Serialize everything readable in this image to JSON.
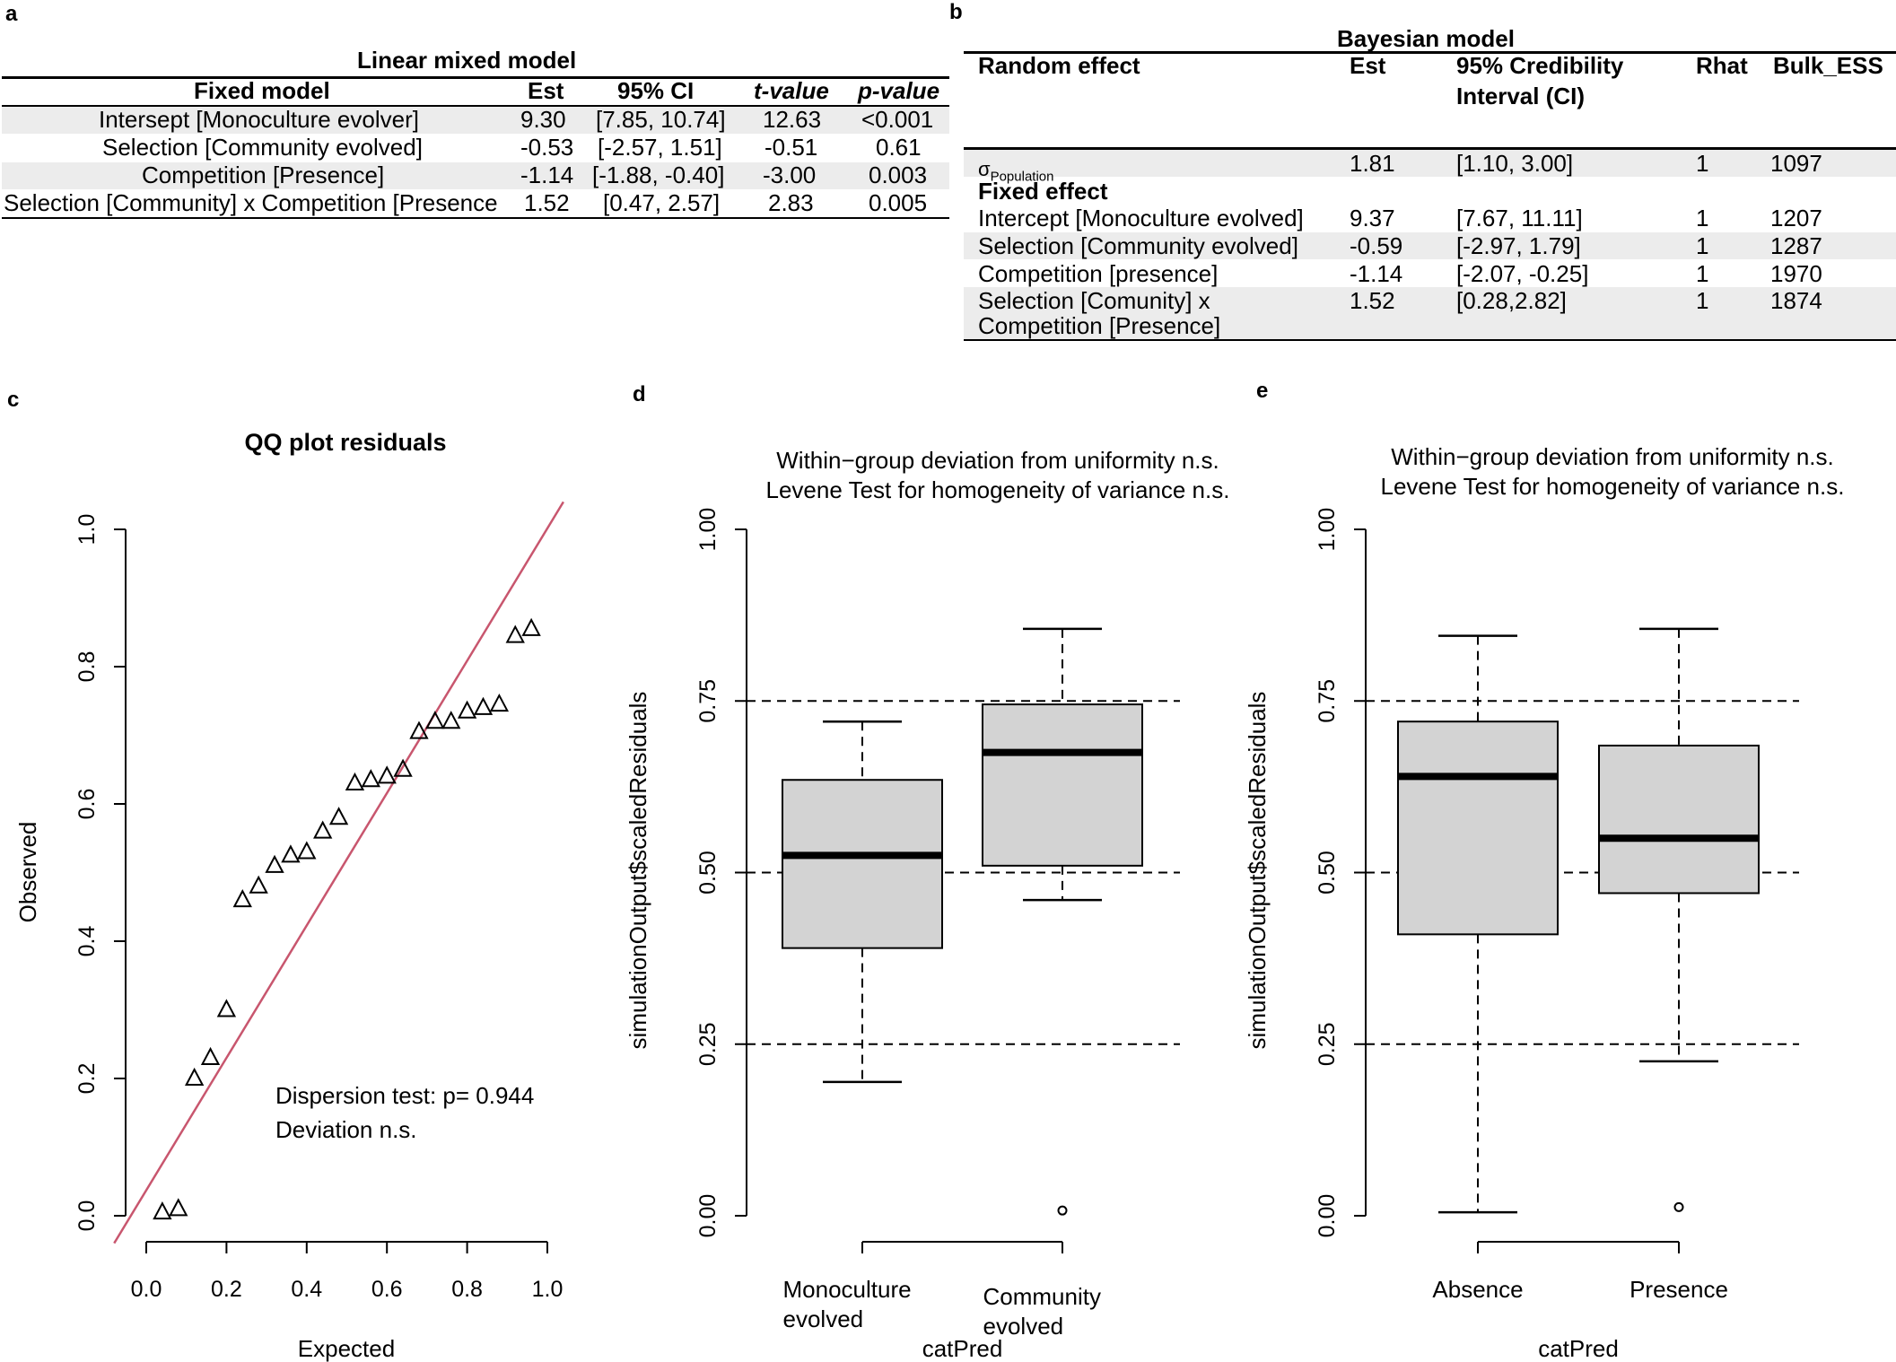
{
  "panels": {
    "a": "a",
    "b": "b",
    "c": "c",
    "d": "d",
    "e": "e"
  },
  "table_a": {
    "title": "Linear mixed model",
    "headers": [
      "Fixed model",
      "Est",
      "95% CI",
      "t-value",
      "p-value"
    ],
    "rows": [
      [
        "Intersept [Monoculture evolver]",
        "9.30",
        "[7.85, 10.74]",
        "12.63",
        "<0.001"
      ],
      [
        "Selection [Community evolved]",
        "-0.53",
        "[-2.57, 1.51]",
        "-0.51",
        "0.61"
      ],
      [
        "Competition [Presence]",
        "-1.14",
        "[-1.88, -0.40]",
        "-3.00",
        "0.003"
      ],
      [
        "Selection [Community] x Competition [Presence",
        "1.52",
        "[0.47, 2.57]",
        "2.83",
        "0.005"
      ]
    ]
  },
  "table_b": {
    "title": "Bayesian model",
    "headers": [
      "Random effect",
      "Est",
      "95% Credibility",
      "Interval (CI)",
      "Rhat",
      "Bulk_ESS"
    ],
    "sigma_symbol": "σ",
    "sigma_sub": "Population",
    "random_row": [
      "1.81",
      "[1.10, 3.00]",
      "1",
      "1097"
    ],
    "fixed_label": "Fixed effect",
    "rows": [
      [
        "Intercept [Monoculture evolved]",
        "9.37",
        "[7.67, 11.11]",
        "1",
        "1207"
      ],
      [
        "Selection [Community evolved]",
        "-0.59",
        "[-2.97, 1.79]",
        "1",
        "1287"
      ],
      [
        "Competition [presence]",
        "-1.14",
        "[-2.07, -0.25]",
        "1",
        "1970"
      ],
      [
        "Selection [Comunity] x",
        "1.52",
        "[0.28,2.82]",
        "1",
        "1874"
      ]
    ],
    "last_row_line2": "Competition [Presence]"
  },
  "chart_data": [
    {
      "type": "scatter",
      "title": "QQ plot residuals",
      "xlabel": "Expected",
      "ylabel": "Observed",
      "xlim": [
        0,
        1
      ],
      "ylim": [
        0,
        1
      ],
      "xticks": [
        "0.0",
        "0.2",
        "0.4",
        "0.6",
        "0.8",
        "1.0"
      ],
      "yticks": [
        "0.0",
        "0.2",
        "0.4",
        "0.6",
        "0.8",
        "1.0"
      ],
      "reference_line_color": "#c8566e",
      "points": [
        [
          0.04,
          0.005
        ],
        [
          0.08,
          0.01
        ],
        [
          0.12,
          0.2
        ],
        [
          0.16,
          0.23
        ],
        [
          0.2,
          0.3
        ],
        [
          0.24,
          0.46
        ],
        [
          0.28,
          0.48
        ],
        [
          0.32,
          0.51
        ],
        [
          0.36,
          0.525
        ],
        [
          0.4,
          0.53
        ],
        [
          0.44,
          0.56
        ],
        [
          0.48,
          0.58
        ],
        [
          0.52,
          0.63
        ],
        [
          0.56,
          0.635
        ],
        [
          0.6,
          0.64
        ],
        [
          0.64,
          0.65
        ],
        [
          0.68,
          0.705
        ],
        [
          0.72,
          0.72
        ],
        [
          0.76,
          0.72
        ],
        [
          0.8,
          0.735
        ],
        [
          0.84,
          0.74
        ],
        [
          0.88,
          0.745
        ],
        [
          0.92,
          0.845
        ],
        [
          0.96,
          0.855
        ]
      ],
      "annotations": [
        "Dispersion test: p= 0.944",
        "Deviation  n.s."
      ]
    },
    {
      "type": "box",
      "title_lines": [
        "Within−group deviation from uniformity n.s.",
        "Levene Test for homogeneity of variance n.s."
      ],
      "xlabel": "catPred",
      "ylabel": "simulationOutput$scaledResiduals",
      "ylim": [
        0,
        1
      ],
      "yticks": [
        "0.00",
        "0.25",
        "0.50",
        "0.75",
        "1.00"
      ],
      "reference_lines": [
        0.25,
        0.5,
        0.75
      ],
      "categories": [
        [
          "Monoculture",
          "evolved"
        ],
        [
          "Community",
          "evolved"
        ]
      ],
      "boxes": [
        {
          "min": 0.195,
          "q1": 0.39,
          "median": 0.525,
          "q3": 0.635,
          "max": 0.72,
          "outliers": []
        },
        {
          "min": 0.46,
          "q1": 0.51,
          "median": 0.675,
          "q3": 0.745,
          "max": 0.855,
          "outliers": [
            0.005
          ]
        }
      ]
    },
    {
      "type": "box",
      "title_lines": [
        "Within−group deviation from uniformity n.s.",
        "Levene Test for homogeneity of variance n.s."
      ],
      "xlabel": "catPred",
      "ylabel": "simulationOutput$scaledResiduals",
      "ylim": [
        0,
        1
      ],
      "yticks": [
        "0.00",
        "0.25",
        "0.50",
        "0.75",
        "1.00"
      ],
      "reference_lines": [
        0.25,
        0.5,
        0.75
      ],
      "categories": [
        [
          "Absence"
        ],
        [
          "Presence"
        ]
      ],
      "boxes": [
        {
          "min": 0.005,
          "q1": 0.41,
          "median": 0.64,
          "q3": 0.72,
          "max": 0.845,
          "outliers": []
        },
        {
          "min": 0.225,
          "q1": 0.47,
          "median": 0.55,
          "q3": 0.685,
          "max": 0.855,
          "outliers": [
            0.01
          ]
        }
      ]
    }
  ]
}
